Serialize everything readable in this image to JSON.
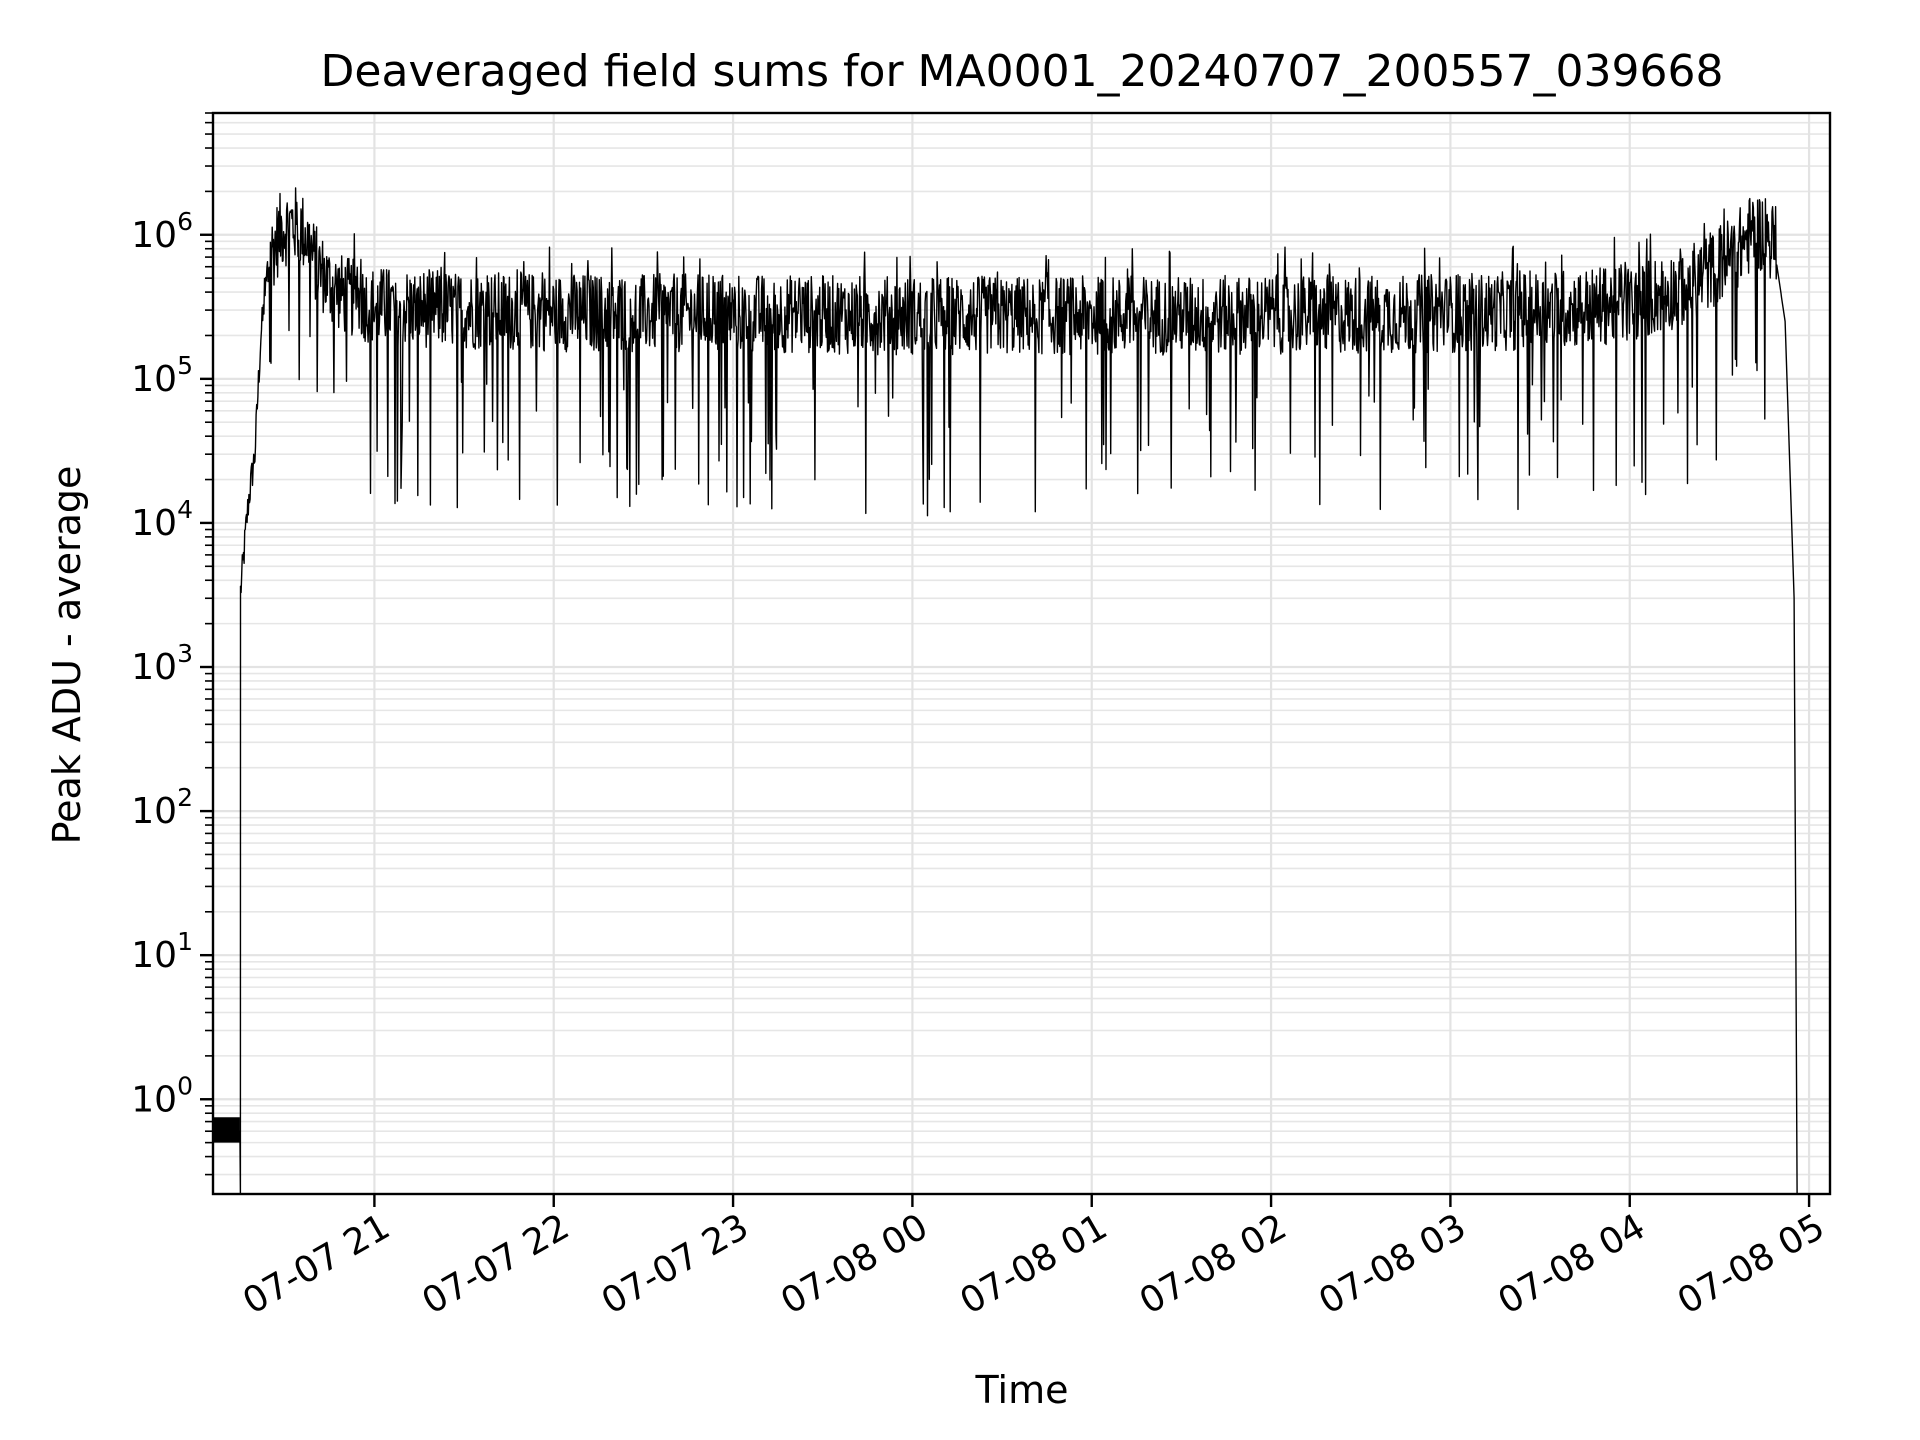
{
  "chart_data": {
    "type": "line",
    "title": "Deaveraged field sums for MA0001_20240707_200557_039668",
    "xlabel": "Time",
    "ylabel": "Peak ADU - average",
    "yscale": "log",
    "ylim": [
      0.22,
      7000000
    ],
    "xlim": [
      "2024-07-07 20:06",
      "2024-07-08 05:07"
    ],
    "grid": true,
    "legend": "none",
    "line_color": "#000000",
    "x_tick_labels": [
      "07-07 21",
      "07-07 22",
      "07-07 23",
      "07-08 00",
      "07-08 01",
      "07-08 02",
      "07-08 03",
      "07-08 04",
      "07-08 05"
    ],
    "x_ticks": [
      "2024-07-07 21:00",
      "2024-07-07 22:00",
      "2024-07-07 23:00",
      "2024-07-08 00:00",
      "2024-07-08 01:00",
      "2024-07-08 02:00",
      "2024-07-08 03:00",
      "2024-07-08 04:00",
      "2024-07-08 05:00"
    ],
    "y_ticks": [
      {
        "base": "10",
        "exp": "0",
        "value": 1
      },
      {
        "base": "10",
        "exp": "1",
        "value": 10
      },
      {
        "base": "10",
        "exp": "2",
        "value": 100
      },
      {
        "base": "10",
        "exp": "3",
        "value": 1000
      },
      {
        "base": "10",
        "exp": "4",
        "value": 10000
      },
      {
        "base": "10",
        "exp": "5",
        "value": 100000
      },
      {
        "base": "10",
        "exp": "6",
        "value": 1000000
      }
    ],
    "series": [
      {
        "x": [
          "2024-07-07 20:06",
          "2024-07-07 20:15",
          "2024-07-07 20:15",
          "2024-07-07 20:16",
          "2024-07-07 20:17",
          "2024-07-07 20:18",
          "2024-07-07 20:20",
          "2024-07-07 20:22",
          "2024-07-07 20:25",
          "2024-07-07 20:29",
          "2024-07-07 20:33",
          "2024-07-07 20:37",
          "2024-07-07 20:40",
          "2024-07-07 20:45",
          "2024-07-07 20:50",
          "2024-07-07 21:00",
          "2024-07-07 21:30",
          "2024-07-07 22:00",
          "2024-07-07 22:30",
          "2024-07-07 23:00",
          "2024-07-07 23:30",
          "2024-07-08 00:00",
          "2024-07-08 00:30",
          "2024-07-08 01:00",
          "2024-07-08 01:30",
          "2024-07-08 02:00",
          "2024-07-08 02:30",
          "2024-07-08 03:00",
          "2024-07-08 03:30",
          "2024-07-08 04:00",
          "2024-07-08 04:20",
          "2024-07-08 04:35",
          "2024-07-08 04:42",
          "2024-07-08 04:48",
          "2024-07-08 04:52",
          "2024-07-08 04:55",
          "2024-07-08 04:56"
        ],
        "y": [
          0.6,
          0.6,
          3000,
          5000,
          9000,
          15000,
          30000,
          200000,
          700000,
          1100000,
          1200000,
          1000000,
          650000,
          450000,
          380000,
          320000,
          300000,
          290000,
          285000,
          285000,
          280000,
          275000,
          275000,
          275000,
          275000,
          280000,
          280000,
          285000,
          300000,
          330000,
          450000,
          750000,
          1100000,
          900000,
          250000,
          3000,
          0.22
        ]
      }
    ]
  }
}
